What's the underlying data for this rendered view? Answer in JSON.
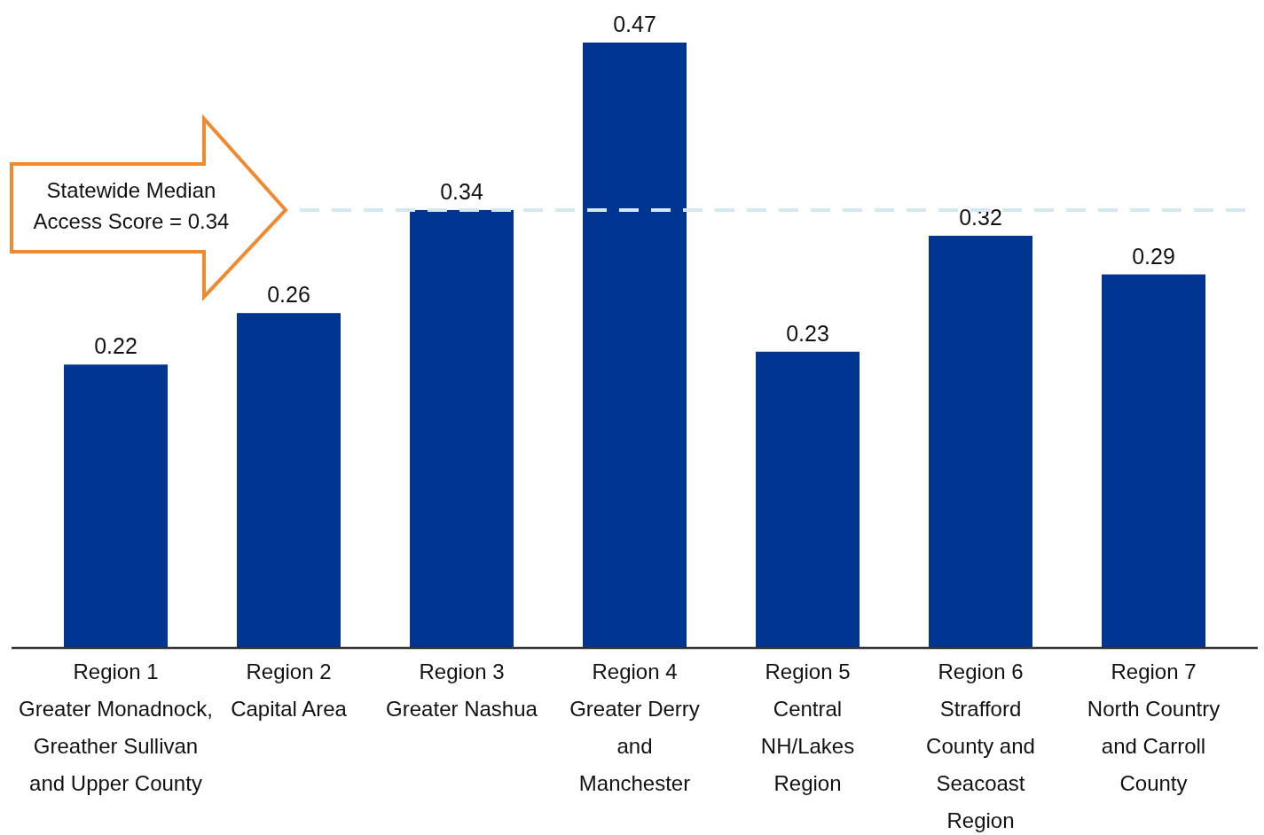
{
  "chart_data": {
    "type": "bar",
    "categories": [
      "Region 1\nGreater Monadnock,\nGreather Sullivan\nand Upper County",
      "Region 2\nCapital Area",
      "Region 3\nGreater Nashua",
      "Region 4\nGreater Derry\nand\nManchester",
      "Region 5\nCentral\nNH/Lakes\nRegion",
      "Region 6\nStrafford\nCounty and\nSeacoast\nRegion",
      "Region 7\nNorth Country\nand Carroll\nCounty"
    ],
    "values": [
      0.22,
      0.26,
      0.34,
      0.47,
      0.23,
      0.32,
      0.29
    ],
    "color": "#003591",
    "data_labels": true,
    "ref_lines": [
      {
        "axis": "y",
        "value": 0.34,
        "color": "#d3e9ef",
        "line_style": "dashed"
      }
    ],
    "annotations": [
      "Statewide Median\nAccess Score = 0.34"
    ]
  }
}
